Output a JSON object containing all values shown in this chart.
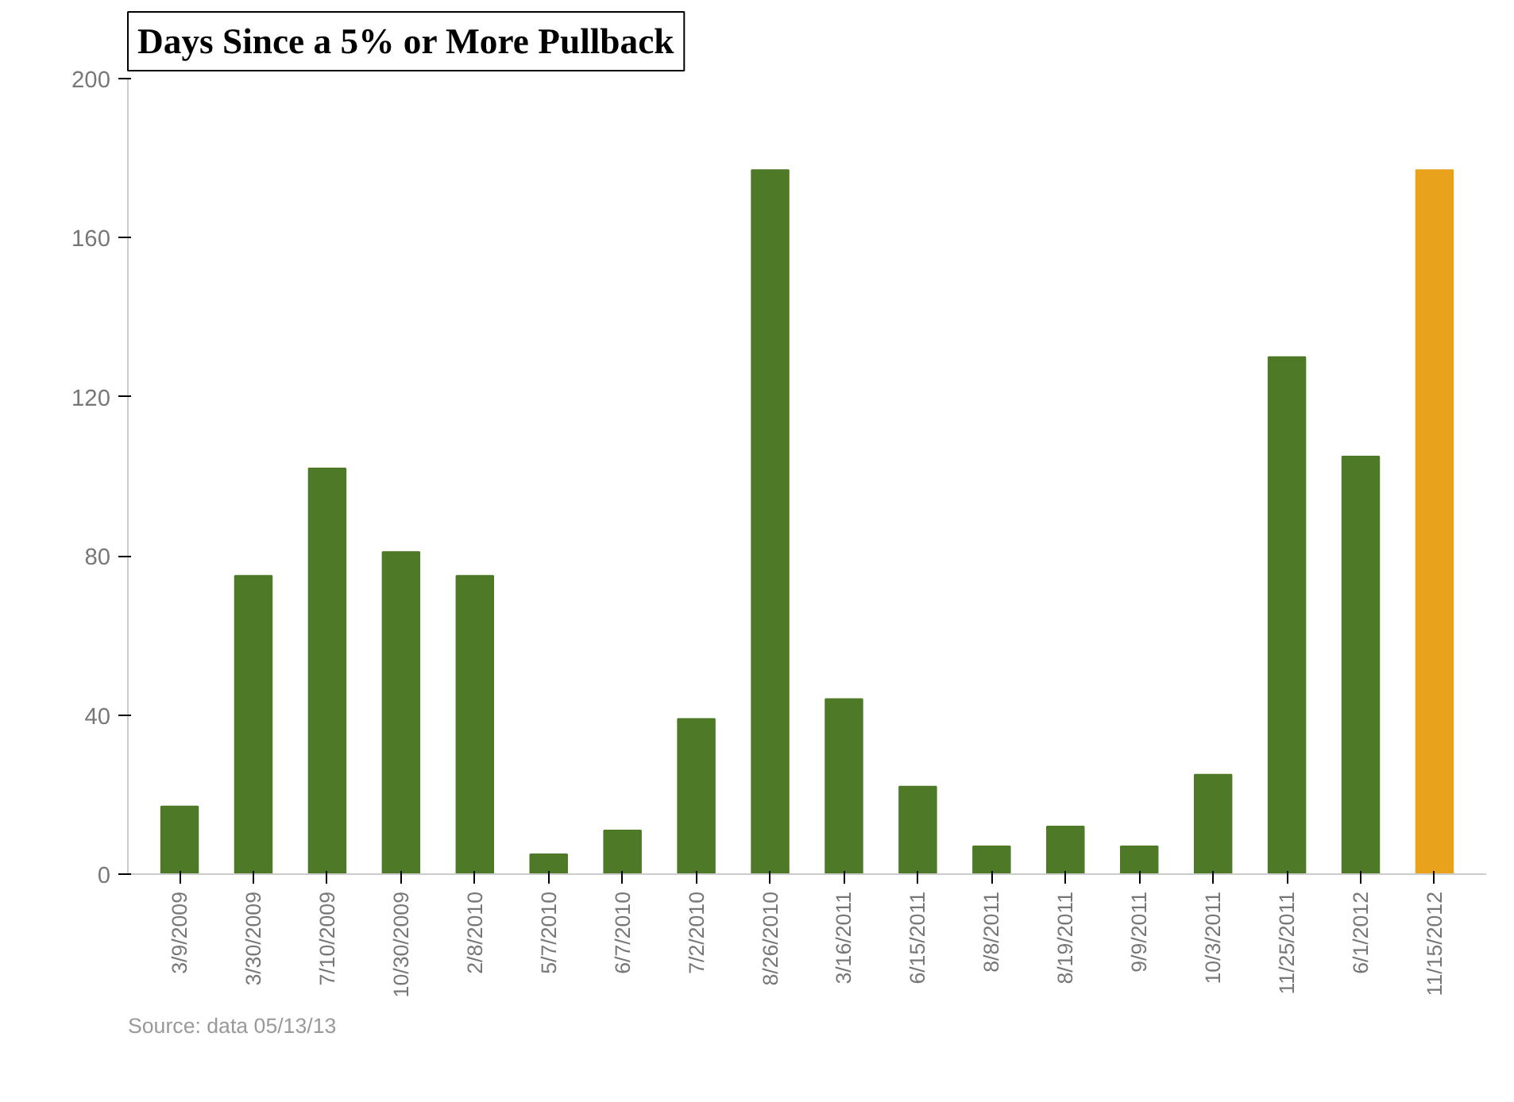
{
  "chart_data": {
    "type": "bar",
    "title": "Days Since a 5% or More Pullback",
    "categories": [
      "3/9/2009",
      "3/30/2009",
      "7/10/2009",
      "10/30/2009",
      "2/8/2010",
      "5/7/2010",
      "6/7/2010",
      "7/2/2010",
      "8/26/2010",
      "3/16/2011",
      "6/15/2011",
      "8/8/2011",
      "8/19/2011",
      "9/9/2011",
      "10/3/2011",
      "11/25/2011",
      "6/1/2012",
      "11/15/2012"
    ],
    "values": [
      17,
      75,
      102,
      81,
      75,
      5,
      11,
      39,
      177,
      44,
      22,
      7,
      12,
      7,
      25,
      130,
      105,
      177
    ],
    "colors": [
      "#4e7a27",
      "#4e7a27",
      "#4e7a27",
      "#4e7a27",
      "#4e7a27",
      "#4e7a27",
      "#4e7a27",
      "#4e7a27",
      "#4e7a27",
      "#4e7a27",
      "#4e7a27",
      "#4e7a27",
      "#4e7a27",
      "#4e7a27",
      "#4e7a27",
      "#4e7a27",
      "#4e7a27",
      "#e8a21c"
    ],
    "ylim": [
      0,
      200
    ],
    "yticks": [
      0,
      40,
      80,
      120,
      160,
      200
    ],
    "grid": false,
    "annotations": [
      "Source: data 05/13/13"
    ]
  }
}
